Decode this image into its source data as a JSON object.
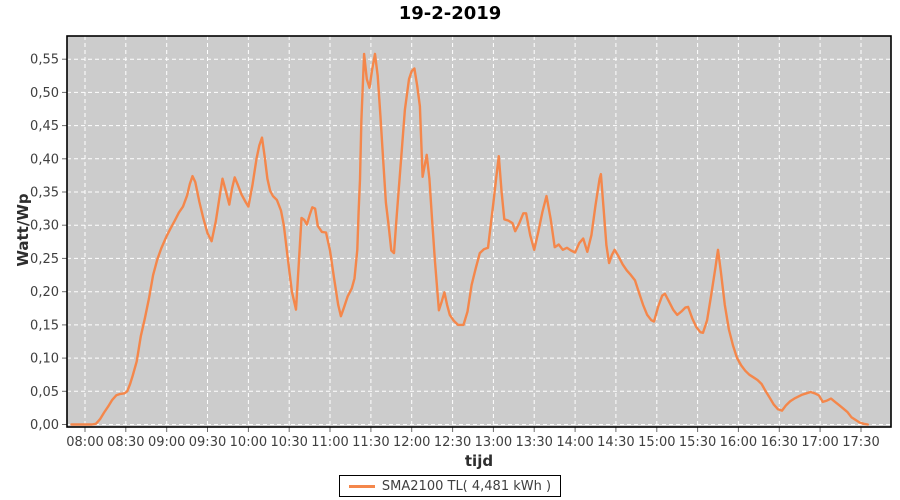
{
  "title": "19-2-2019",
  "colors": {
    "page_bg": "#FFFFFF",
    "plot_bg": "#CCCCCC",
    "grid": "#FFFFFF",
    "border": "#000000",
    "tick_mark": "#6E6E6E",
    "tick_label": "#3F3F3F",
    "axis_label": "#2E2E2E",
    "title": "#000000",
    "series": "#F4874B"
  },
  "legend": {
    "position": "bottom-center",
    "entries": [
      {
        "label": "SMA2100 TL( 4,481 kWh )",
        "color": "#F4874B"
      }
    ]
  },
  "chart_data": {
    "type": "line",
    "title": "19-2-2019",
    "xlabel": "tijd",
    "ylabel": "Watt/Wp",
    "grid": "white dashed on gray, both axes",
    "legend_position": "bottom",
    "ylim": [
      0.0,
      0.55
    ],
    "y_tick_step": 0.05,
    "y_tick_labels": [
      "0,00",
      "0,05",
      "0,10",
      "0,15",
      "0,20",
      "0,25",
      "0,30",
      "0,35",
      "0,40",
      "0,45",
      "0,50",
      "0,55"
    ],
    "x_range": [
      "07:47",
      "17:53"
    ],
    "x_ticks": [
      "08:00",
      "08:30",
      "09:00",
      "09:30",
      "10:00",
      "10:30",
      "11:00",
      "11:30",
      "12:00",
      "12:30",
      "13:00",
      "13:30",
      "14:00",
      "14:30",
      "15:00",
      "15:30",
      "16:00",
      "16:30",
      "17:00",
      "17:30"
    ],
    "series": [
      {
        "name": "SMA2100 TL( 4,481 kWh )",
        "color": "#F4874B",
        "points": [
          [
            "07:50",
            0.0
          ],
          [
            "07:55",
            0.0
          ],
          [
            "08:00",
            0.0
          ],
          [
            "08:05",
            0.0
          ],
          [
            "08:08",
            0.001
          ],
          [
            "08:11",
            0.008
          ],
          [
            "08:14",
            0.018
          ],
          [
            "08:17",
            0.027
          ],
          [
            "08:20",
            0.037
          ],
          [
            "08:23",
            0.044
          ],
          [
            "08:26",
            0.046
          ],
          [
            "08:29",
            0.047
          ],
          [
            "08:31",
            0.05
          ],
          [
            "08:33",
            0.06
          ],
          [
            "08:35",
            0.073
          ],
          [
            "08:38",
            0.095
          ],
          [
            "08:41",
            0.133
          ],
          [
            "08:44",
            0.16
          ],
          [
            "08:47",
            0.19
          ],
          [
            "08:50",
            0.225
          ],
          [
            "08:53",
            0.248
          ],
          [
            "08:56",
            0.265
          ],
          [
            "09:00",
            0.284
          ],
          [
            "09:03",
            0.296
          ],
          [
            "09:06",
            0.307
          ],
          [
            "09:09",
            0.319
          ],
          [
            "09:12",
            0.328
          ],
          [
            "09:15",
            0.345
          ],
          [
            "09:17",
            0.362
          ],
          [
            "09:19",
            0.374
          ],
          [
            "09:21",
            0.365
          ],
          [
            "09:24",
            0.335
          ],
          [
            "09:27",
            0.31
          ],
          [
            "09:30",
            0.288
          ],
          [
            "09:33",
            0.276
          ],
          [
            "09:36",
            0.305
          ],
          [
            "09:39",
            0.345
          ],
          [
            "09:41",
            0.37
          ],
          [
            "09:43",
            0.355
          ],
          [
            "09:46",
            0.331
          ],
          [
            "09:48",
            0.355
          ],
          [
            "09:50",
            0.372
          ],
          [
            "09:52",
            0.362
          ],
          [
            "09:55",
            0.346
          ],
          [
            "09:58",
            0.335
          ],
          [
            "10:00",
            0.328
          ],
          [
            "10:03",
            0.36
          ],
          [
            "10:06",
            0.4
          ],
          [
            "10:08",
            0.42
          ],
          [
            "10:10",
            0.432
          ],
          [
            "10:12",
            0.403
          ],
          [
            "10:14",
            0.37
          ],
          [
            "10:16",
            0.352
          ],
          [
            "10:18",
            0.344
          ],
          [
            "10:21",
            0.338
          ],
          [
            "10:24",
            0.322
          ],
          [
            "10:26",
            0.3
          ],
          [
            "10:29",
            0.25
          ],
          [
            "10:32",
            0.2
          ],
          [
            "10:35",
            0.173
          ],
          [
            "10:37",
            0.24
          ],
          [
            "10:39",
            0.311
          ],
          [
            "10:41",
            0.308
          ],
          [
            "10:43",
            0.301
          ],
          [
            "10:45",
            0.315
          ],
          [
            "10:47",
            0.327
          ],
          [
            "10:49",
            0.325
          ],
          [
            "10:51",
            0.299
          ],
          [
            "10:54",
            0.29
          ],
          [
            "10:57",
            0.289
          ],
          [
            "11:00",
            0.262
          ],
          [
            "11:03",
            0.22
          ],
          [
            "11:06",
            0.18
          ],
          [
            "11:08",
            0.163
          ],
          [
            "11:10",
            0.175
          ],
          [
            "11:13",
            0.193
          ],
          [
            "11:16",
            0.205
          ],
          [
            "11:18",
            0.22
          ],
          [
            "11:20",
            0.263
          ],
          [
            "11:21",
            0.32
          ],
          [
            "11:22",
            0.369
          ],
          [
            "11:23",
            0.459
          ],
          [
            "11:25",
            0.558
          ],
          [
            "11:27",
            0.52
          ],
          [
            "11:29",
            0.507
          ],
          [
            "11:31",
            0.535
          ],
          [
            "11:33",
            0.558
          ],
          [
            "11:35",
            0.525
          ],
          [
            "11:37",
            0.465
          ],
          [
            "11:39",
            0.4
          ],
          [
            "11:41",
            0.334
          ],
          [
            "11:43",
            0.3
          ],
          [
            "11:45",
            0.262
          ],
          [
            "11:47",
            0.258
          ],
          [
            "11:49",
            0.314
          ],
          [
            "11:52",
            0.394
          ],
          [
            "11:55",
            0.474
          ],
          [
            "11:58",
            0.52
          ],
          [
            "12:00",
            0.532
          ],
          [
            "12:02",
            0.536
          ],
          [
            "12:04",
            0.51
          ],
          [
            "12:06",
            0.479
          ],
          [
            "12:08",
            0.373
          ],
          [
            "12:11",
            0.406
          ],
          [
            "12:13",
            0.37
          ],
          [
            "12:15",
            0.308
          ],
          [
            "12:17",
            0.247
          ],
          [
            "12:20",
            0.172
          ],
          [
            "12:22",
            0.185
          ],
          [
            "12:24",
            0.199
          ],
          [
            "12:26",
            0.18
          ],
          [
            "12:28",
            0.165
          ],
          [
            "12:31",
            0.156
          ],
          [
            "12:34",
            0.15
          ],
          [
            "12:38",
            0.15
          ],
          [
            "12:41",
            0.17
          ],
          [
            "12:44",
            0.21
          ],
          [
            "12:47",
            0.235
          ],
          [
            "12:50",
            0.258
          ],
          [
            "12:53",
            0.264
          ],
          [
            "12:56",
            0.266
          ],
          [
            "12:58",
            0.3
          ],
          [
            "13:00",
            0.334
          ],
          [
            "13:02",
            0.37
          ],
          [
            "13:04",
            0.404
          ],
          [
            "13:06",
            0.35
          ],
          [
            "13:08",
            0.309
          ],
          [
            "13:11",
            0.307
          ],
          [
            "13:14",
            0.303
          ],
          [
            "13:16",
            0.291
          ],
          [
            "13:19",
            0.303
          ],
          [
            "13:22",
            0.318
          ],
          [
            "13:24",
            0.318
          ],
          [
            "13:27",
            0.285
          ],
          [
            "13:30",
            0.263
          ],
          [
            "13:33",
            0.29
          ],
          [
            "13:36",
            0.32
          ],
          [
            "13:39",
            0.344
          ],
          [
            "13:42",
            0.31
          ],
          [
            "13:45",
            0.267
          ],
          [
            "13:48",
            0.271
          ],
          [
            "13:51",
            0.263
          ],
          [
            "13:54",
            0.266
          ],
          [
            "13:57",
            0.262
          ],
          [
            "14:00",
            0.259
          ],
          [
            "14:03",
            0.273
          ],
          [
            "14:06",
            0.28
          ],
          [
            "14:09",
            0.26
          ],
          [
            "14:12",
            0.285
          ],
          [
            "14:15",
            0.33
          ],
          [
            "14:18",
            0.37
          ],
          [
            "14:19",
            0.377
          ],
          [
            "14:21",
            0.323
          ],
          [
            "14:23",
            0.27
          ],
          [
            "14:25",
            0.243
          ],
          [
            "14:27",
            0.255
          ],
          [
            "14:29",
            0.263
          ],
          [
            "14:32",
            0.253
          ],
          [
            "14:35",
            0.241
          ],
          [
            "14:38",
            0.232
          ],
          [
            "14:41",
            0.225
          ],
          [
            "14:44",
            0.217
          ],
          [
            "14:47",
            0.198
          ],
          [
            "14:50",
            0.18
          ],
          [
            "14:53",
            0.165
          ],
          [
            "14:56",
            0.157
          ],
          [
            "14:58",
            0.155
          ],
          [
            "15:01",
            0.177
          ],
          [
            "15:04",
            0.194
          ],
          [
            "15:06",
            0.197
          ],
          [
            "15:09",
            0.185
          ],
          [
            "15:12",
            0.173
          ],
          [
            "15:15",
            0.165
          ],
          [
            "15:18",
            0.17
          ],
          [
            "15:21",
            0.176
          ],
          [
            "15:23",
            0.177
          ],
          [
            "15:26",
            0.16
          ],
          [
            "15:29",
            0.147
          ],
          [
            "15:32",
            0.139
          ],
          [
            "15:34",
            0.138
          ],
          [
            "15:37",
            0.157
          ],
          [
            "15:40",
            0.195
          ],
          [
            "15:43",
            0.235
          ],
          [
            "15:45",
            0.263
          ],
          [
            "15:47",
            0.232
          ],
          [
            "15:50",
            0.18
          ],
          [
            "15:53",
            0.143
          ],
          [
            "15:56",
            0.119
          ],
          [
            "15:59",
            0.1
          ],
          [
            "16:02",
            0.089
          ],
          [
            "16:05",
            0.081
          ],
          [
            "16:08",
            0.075
          ],
          [
            "16:11",
            0.071
          ],
          [
            "16:14",
            0.067
          ],
          [
            "16:17",
            0.061
          ],
          [
            "16:20",
            0.05
          ],
          [
            "16:23",
            0.04
          ],
          [
            "16:26",
            0.03
          ],
          [
            "16:29",
            0.023
          ],
          [
            "16:32",
            0.021
          ],
          [
            "16:35",
            0.029
          ],
          [
            "16:38",
            0.035
          ],
          [
            "16:41",
            0.039
          ],
          [
            "16:44",
            0.042
          ],
          [
            "16:47",
            0.045
          ],
          [
            "16:50",
            0.047
          ],
          [
            "16:53",
            0.049
          ],
          [
            "16:56",
            0.047
          ],
          [
            "16:59",
            0.044
          ],
          [
            "17:02",
            0.034
          ],
          [
            "17:05",
            0.036
          ],
          [
            "17:08",
            0.039
          ],
          [
            "17:11",
            0.034
          ],
          [
            "17:14",
            0.029
          ],
          [
            "17:17",
            0.024
          ],
          [
            "17:20",
            0.019
          ],
          [
            "17:23",
            0.011
          ],
          [
            "17:26",
            0.007
          ],
          [
            "17:29",
            0.003
          ],
          [
            "17:32",
            0.001
          ],
          [
            "17:35",
            0.0
          ]
        ]
      }
    ]
  }
}
